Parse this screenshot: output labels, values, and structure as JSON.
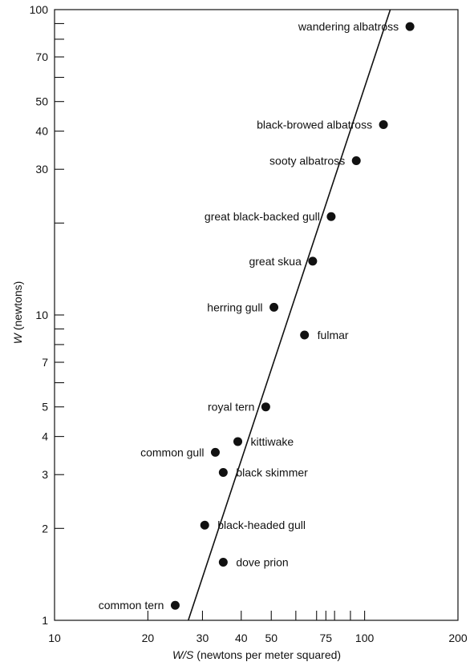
{
  "chart_data": {
    "type": "scatter",
    "xscale": "log",
    "yscale": "log",
    "xlim": [
      10,
      200
    ],
    "ylim": [
      1,
      100
    ],
    "grid": false,
    "xlabel_var": "W/S",
    "xlabel_rest": " (newtons  per meter squared)",
    "ylabel_var": "W",
    "ylabel_rest": " (newtons)",
    "xticks_labeled": [
      {
        "value": 10,
        "label": "10"
      },
      {
        "value": 20,
        "label": "20"
      },
      {
        "value": 30,
        "label": "30"
      },
      {
        "value": 40,
        "label": "40"
      },
      {
        "value": 50,
        "label": "50"
      },
      {
        "value": 75,
        "label": "75"
      },
      {
        "value": 100,
        "label": "100"
      },
      {
        "value": 200,
        "label": "200"
      }
    ],
    "xticks_minor": [
      60,
      70,
      80,
      90
    ],
    "yticks_labeled": [
      {
        "value": 1,
        "label": "1"
      },
      {
        "value": 2,
        "label": "2"
      },
      {
        "value": 3,
        "label": "3"
      },
      {
        "value": 4,
        "label": "4"
      },
      {
        "value": 5,
        "label": "5"
      },
      {
        "value": 7,
        "label": "7"
      },
      {
        "value": 10,
        "label": "10"
      },
      {
        "value": 30,
        "label": "30"
      },
      {
        "value": 40,
        "label": "40"
      },
      {
        "value": 50,
        "label": "50"
      },
      {
        "value": 70,
        "label": "70"
      },
      {
        "value": 100,
        "label": "100"
      }
    ],
    "yticks_minor": [
      6,
      8,
      9,
      20,
      60,
      80,
      90
    ],
    "points": [
      {
        "name": "wandering albatross",
        "x": 140,
        "y": 88,
        "label_side": "left"
      },
      {
        "name": "black-browed albatross",
        "x": 115,
        "y": 42,
        "label_side": "left"
      },
      {
        "name": "sooty albatross",
        "x": 94,
        "y": 32,
        "label_side": "left"
      },
      {
        "name": "great black-backed gull",
        "x": 78,
        "y": 21,
        "label_side": "left"
      },
      {
        "name": "great skua",
        "x": 68,
        "y": 15,
        "label_side": "left"
      },
      {
        "name": "herring gull",
        "x": 51,
        "y": 10.6,
        "label_side": "left"
      },
      {
        "name": "fulmar",
        "x": 64,
        "y": 8.6,
        "label_side": "right"
      },
      {
        "name": "royal tern",
        "x": 48,
        "y": 5,
        "label_side": "left"
      },
      {
        "name": "kittiwake",
        "x": 39,
        "y": 3.85,
        "label_side": "right"
      },
      {
        "name": "common gull",
        "x": 33,
        "y": 3.55,
        "label_side": "left"
      },
      {
        "name": "black skimmer",
        "x": 35,
        "y": 3.05,
        "label_side": "right"
      },
      {
        "name": "black-headed gull",
        "x": 30.5,
        "y": 2.05,
        "label_side": "right"
      },
      {
        "name": "dove prion",
        "x": 35,
        "y": 1.55,
        "label_side": "right"
      },
      {
        "name": "common tern",
        "x": 24.5,
        "y": 1.12,
        "label_side": "left"
      }
    ],
    "fit_line": {
      "x": [
        27,
        121
      ],
      "y": [
        1,
        100
      ]
    }
  }
}
